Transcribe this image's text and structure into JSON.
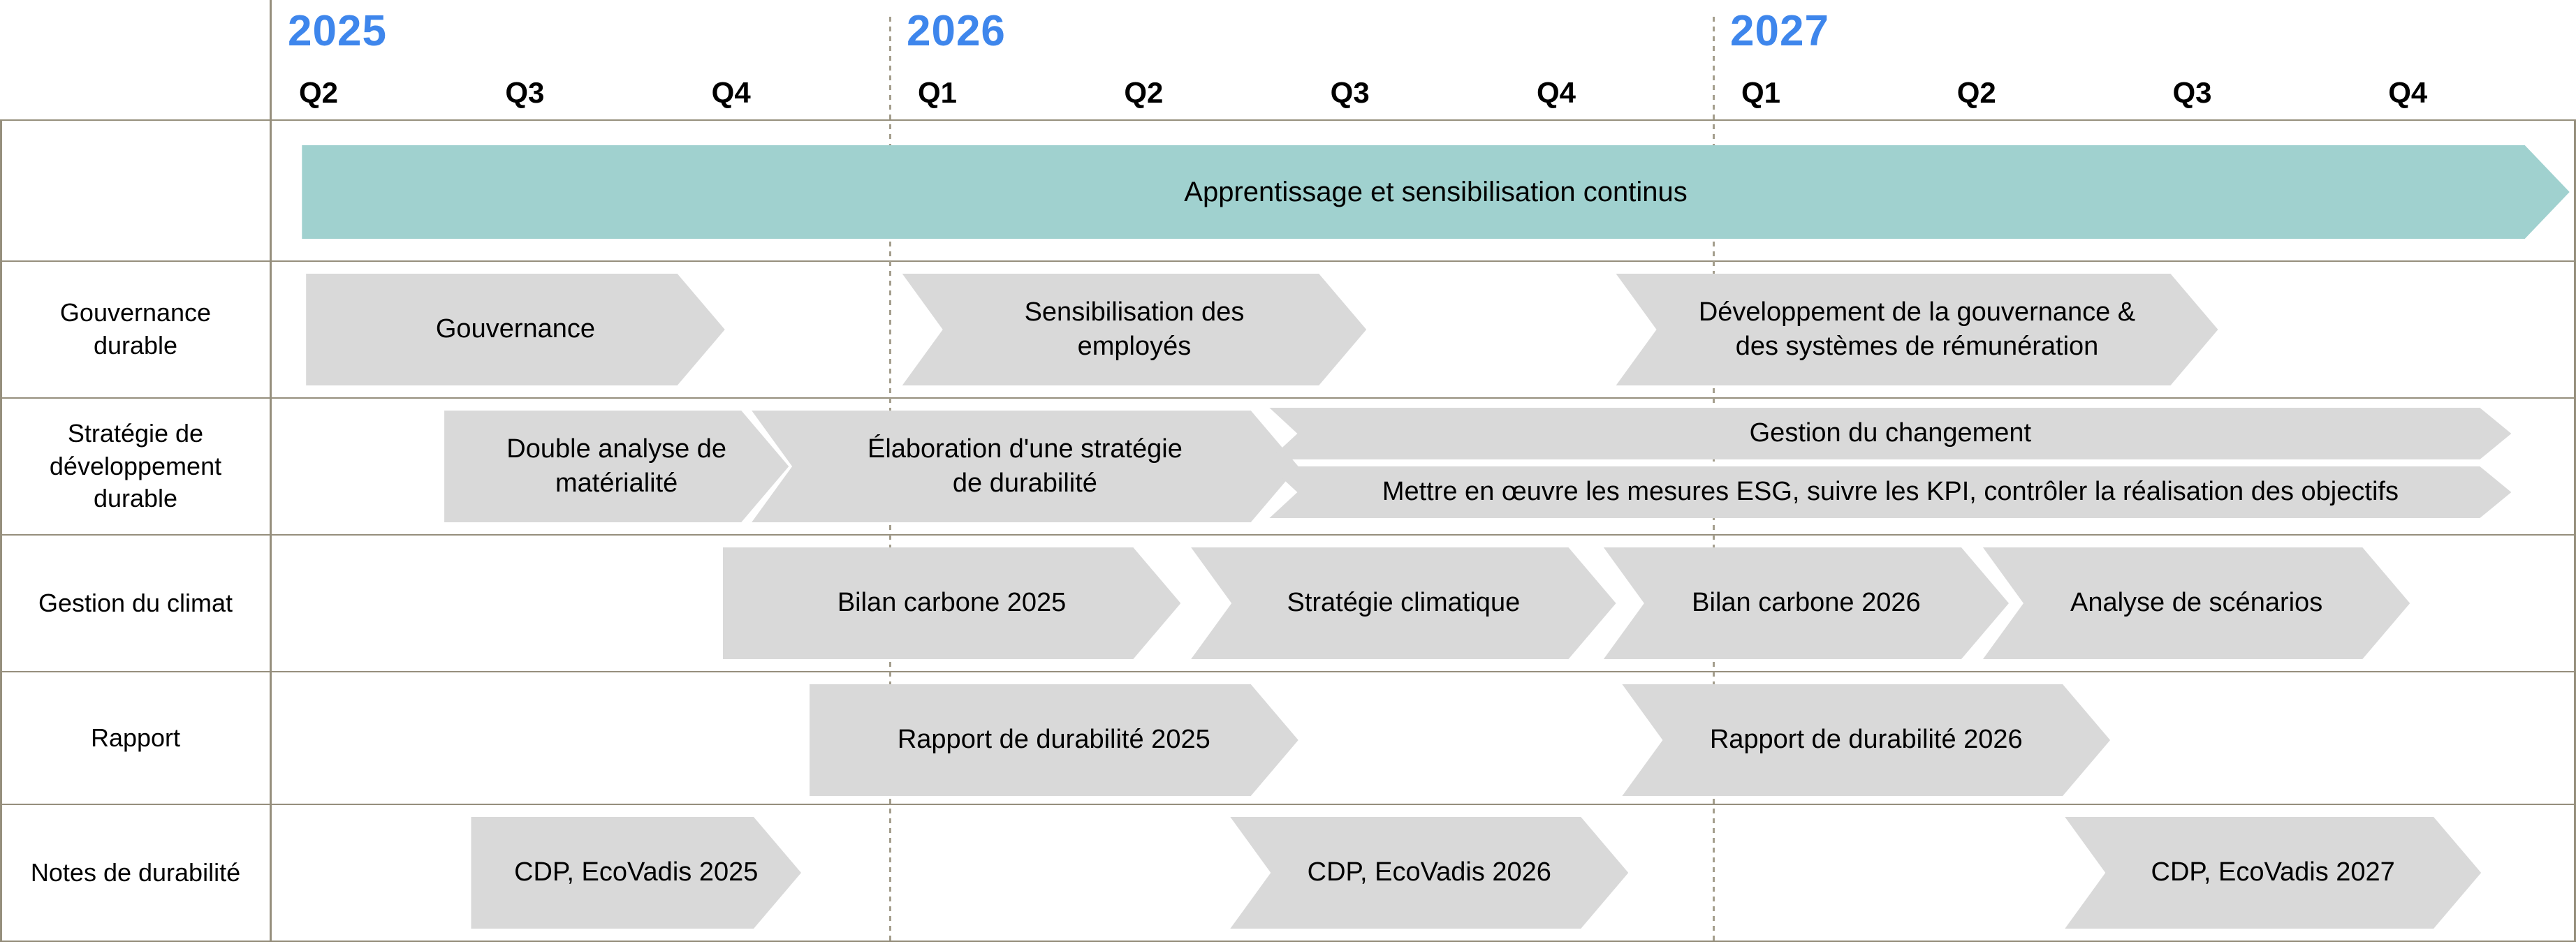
{
  "colors": {
    "year_blue": "#3e86ec",
    "bar_gray": "#d9d9d9",
    "bar_teal": "#a0d1cf",
    "grid_line": "#968f7d",
    "text": "#000000"
  },
  "chart_data": {
    "type": "bar",
    "variant": "gantt-roadmap",
    "title": "",
    "x_unit": "quarters (0 = start of 2025 Q2, 1 unit = 1 quarter)",
    "x_range": [
      0,
      11
    ],
    "grid": "dashed vertical dividers at each new year",
    "legend_position": "none",
    "years": [
      {
        "label": "2025",
        "q": 0
      },
      {
        "label": "2026",
        "q": 3
      },
      {
        "label": "2027",
        "q": 7
      }
    ],
    "year_divider_q": [
      3,
      7
    ],
    "quarters": [
      {
        "label": "Q2",
        "q": 0
      },
      {
        "label": "Q3",
        "q": 1
      },
      {
        "label": "Q4",
        "q": 2
      },
      {
        "label": "Q1",
        "q": 3
      },
      {
        "label": "Q2",
        "q": 4
      },
      {
        "label": "Q3",
        "q": 5
      },
      {
        "label": "Q4",
        "q": 6
      },
      {
        "label": "Q1",
        "q": 7
      },
      {
        "label": "Q2",
        "q": 8
      },
      {
        "label": "Q3",
        "q": 9
      },
      {
        "label": "Q4",
        "q": 10
      }
    ],
    "rows": [
      {
        "label": "",
        "tasks": [
          {
            "label": "Apprentissage et sensibilisation continus",
            "start": 0.15,
            "end": 10.97,
            "color": "teal",
            "start_style": "flat",
            "lane": "banner"
          }
        ]
      },
      {
        "label": "Gouvernance\ndurable",
        "tasks": [
          {
            "label": "Gouvernance",
            "start": 0.17,
            "end": 2.2,
            "color": "gray",
            "start_style": "flat",
            "lane": "full"
          },
          {
            "label": "Sensibilisation des\nemployés",
            "start": 3.06,
            "end": 5.31,
            "color": "gray",
            "start_style": "notch",
            "lane": "full"
          },
          {
            "label": "Développement de la gouvernance &\ndes systèmes de rémunération",
            "start": 6.52,
            "end": 9.34,
            "color": "gray",
            "start_style": "notch",
            "lane": "full"
          }
        ]
      },
      {
        "label": "Stratégie de\ndéveloppement\ndurable",
        "tasks": [
          {
            "label": "Double analyse de\nmatérialité",
            "start": 0.84,
            "end": 2.51,
            "color": "gray",
            "start_style": "flat",
            "lane": "full"
          },
          {
            "label": "Élaboration d'une stratégie\nde durabilité",
            "start": 2.33,
            "end": 4.98,
            "color": "gray",
            "start_style": "notch",
            "lane": "full"
          },
          {
            "label": "Gestion du changement",
            "start": 4.84,
            "end": 10.7,
            "color": "gray",
            "start_style": "notch",
            "lane": "top"
          },
          {
            "label": "Mettre en œuvre les mesures ESG, suivre les KPI, contrôler la réalisation des objectifs",
            "start": 4.84,
            "end": 10.7,
            "color": "gray",
            "start_style": "notch",
            "lane": "bottom"
          }
        ]
      },
      {
        "label": "Gestion du climat",
        "tasks": [
          {
            "label": "Bilan carbone 2025",
            "start": 2.19,
            "end": 4.41,
            "color": "gray",
            "start_style": "flat",
            "lane": "full"
          },
          {
            "label": "Stratégie climatique",
            "start": 4.46,
            "end": 6.52,
            "color": "gray",
            "start_style": "notch",
            "lane": "full"
          },
          {
            "label": "Bilan carbone 2026",
            "start": 6.46,
            "end": 8.37,
            "color": "gray",
            "start_style": "notch",
            "lane": "full"
          },
          {
            "label": "Analyse de scénarios",
            "start": 8.25,
            "end": 10.23,
            "color": "gray",
            "start_style": "notch",
            "lane": "full"
          }
        ]
      },
      {
        "label": "Rapport",
        "tasks": [
          {
            "label": "Rapport de durabilité 2025",
            "start": 2.61,
            "end": 4.98,
            "color": "gray",
            "start_style": "flat",
            "lane": "full"
          },
          {
            "label": "Rapport de durabilité 2026",
            "start": 6.55,
            "end": 8.84,
            "color": "gray",
            "start_style": "notch",
            "lane": "full"
          }
        ]
      },
      {
        "label": "Notes de durabilité",
        "tasks": [
          {
            "label": "CDP, EcoVadis 2025",
            "start": 0.97,
            "end": 2.57,
            "color": "gray",
            "start_style": "flat",
            "lane": "full"
          },
          {
            "label": "CDP, EcoVadis 2026",
            "start": 4.65,
            "end": 6.58,
            "color": "gray",
            "start_style": "notch",
            "lane": "full"
          },
          {
            "label": "CDP, EcoVadis 2027",
            "start": 8.63,
            "end": 10.56,
            "color": "gray",
            "start_style": "notch",
            "lane": "full"
          }
        ]
      }
    ]
  }
}
